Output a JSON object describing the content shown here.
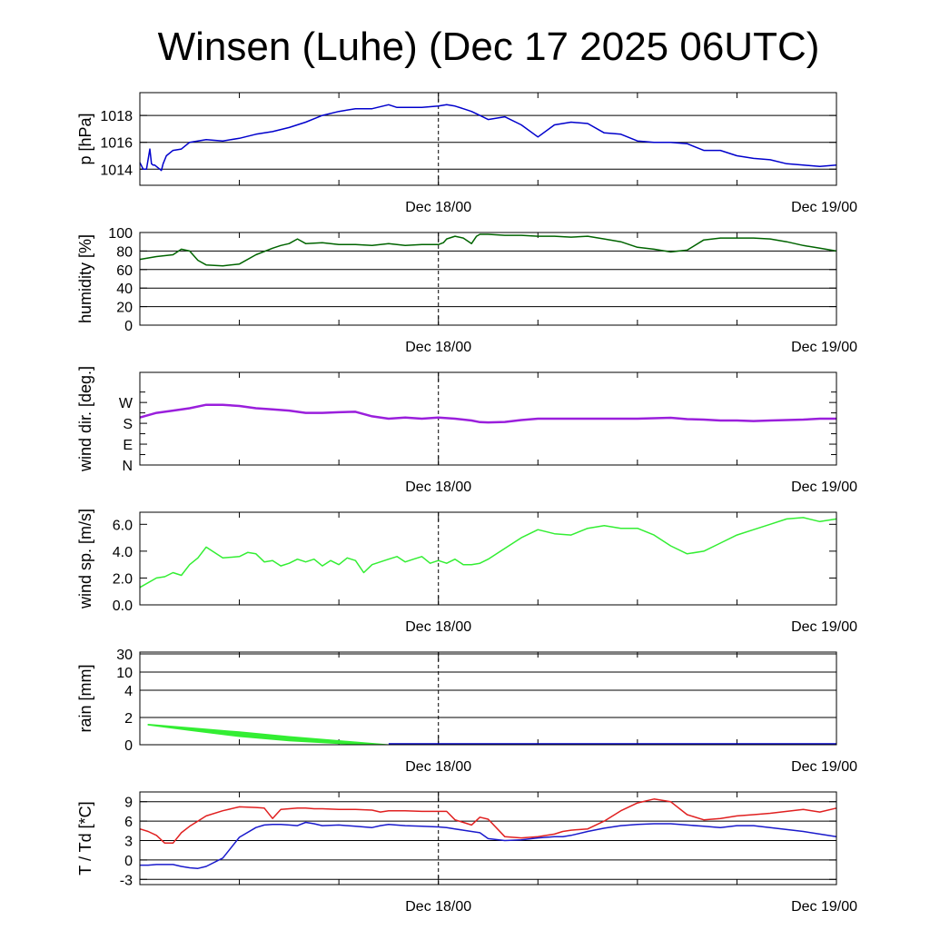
{
  "title": "Winsen (Luhe) (Dec 17 2025 06UTC)",
  "x_tick_labels": [
    "Dec 18/00",
    "Dec 19/00"
  ],
  "colors": {
    "pressure": "#0000cc",
    "humidity": "#006400",
    "wind_dir": "#9a1fdc",
    "wind_speed": "#33ee33",
    "rain": "#33ee33",
    "temperature": "#e02020",
    "dewpoint": "#1a1acc"
  },
  "chart_data": [
    {
      "type": "line",
      "name": "pressure",
      "ylabel": "p [hPa]",
      "xlim": [
        -18,
        24
      ],
      "ylim": [
        1012.8,
        1019.7
      ],
      "yticks": [
        1014,
        1016,
        1018
      ],
      "ytick_labels": [
        "1014",
        "1016",
        "1018"
      ],
      "grid": true,
      "x": [
        -18,
        -17.8,
        -17.6,
        -17.4,
        -17.3,
        -17.2,
        -17.1,
        -16.9,
        -16.7,
        -16.6,
        -16.4,
        -16,
        -15.5,
        -15,
        -14.5,
        -14,
        -13,
        -12,
        -11,
        -10,
        -9,
        -8,
        -7,
        -6,
        -5,
        -4,
        -3,
        -2.5,
        -2,
        -1,
        0,
        0.5,
        1,
        1.5,
        2,
        2.5,
        3,
        4,
        5,
        6,
        7,
        8,
        9,
        10,
        11,
        12,
        13,
        14,
        15,
        16,
        17,
        18,
        19,
        20,
        21,
        22,
        23,
        24
      ],
      "series": [
        {
          "name": "p",
          "color_key": "pressure",
          "values": [
            1014.5,
            1014.0,
            1014.0,
            1015.5,
            1014.4,
            1014.3,
            1014.3,
            1014.1,
            1013.9,
            1014.4,
            1015.0,
            1015.4,
            1015.5,
            1016.0,
            1016.1,
            1016.2,
            1016.1,
            1016.3,
            1016.6,
            1016.8,
            1017.1,
            1017.5,
            1018.0,
            1018.3,
            1018.5,
            1018.5,
            1018.8,
            1018.6,
            1018.6,
            1018.6,
            1018.7,
            1018.8,
            1018.7,
            1018.5,
            1018.3,
            1018.0,
            1017.7,
            1017.9,
            1017.3,
            1016.4,
            1017.3,
            1017.5,
            1017.4,
            1016.7,
            1016.6,
            1016.1,
            1016.0,
            1016.0,
            1015.9,
            1015.4,
            1015.4,
            1015.0,
            1014.8,
            1014.7,
            1014.4,
            1014.3,
            1014.2,
            1014.3
          ]
        }
      ]
    },
    {
      "type": "line",
      "name": "humidity",
      "ylabel": "humidity [%]",
      "xlim": [
        -18,
        24
      ],
      "ylim": [
        0,
        100
      ],
      "yticks": [
        0,
        20,
        40,
        60,
        80,
        100
      ],
      "ytick_labels": [
        "0",
        "20",
        "40",
        "60",
        "80",
        "100"
      ],
      "grid": true,
      "x": [
        -18,
        -17,
        -16,
        -15.5,
        -15,
        -14.5,
        -14,
        -13,
        -12,
        -11,
        -10,
        -9.5,
        -9,
        -8.5,
        -8,
        -7,
        -6,
        -5,
        -4,
        -3,
        -2,
        -1,
        0,
        0.3,
        0.5,
        1,
        1.5,
        2,
        2.3,
        2.5,
        3,
        4,
        5,
        6,
        7,
        8,
        9,
        10,
        11,
        12,
        13,
        14,
        15,
        16,
        17,
        18,
        19,
        20,
        21,
        22,
        23,
        24
      ],
      "series": [
        {
          "name": "rh",
          "color_key": "humidity",
          "values": [
            71,
            74,
            76,
            82,
            80,
            70,
            65,
            64,
            66,
            76,
            83,
            86,
            88,
            93,
            88,
            89,
            87,
            87,
            86,
            88,
            86,
            87,
            87,
            89,
            93,
            96,
            94,
            88,
            96,
            98,
            98,
            97,
            97,
            96,
            96,
            95,
            96,
            93,
            90,
            84,
            82,
            79,
            81,
            92,
            94,
            94,
            94,
            93,
            90,
            86,
            83,
            80
          ]
        }
      ]
    },
    {
      "type": "line",
      "name": "wind_direction",
      "ylabel": "wind dir. [deg.]",
      "xlim": [
        -18,
        24
      ],
      "ylim": [
        0,
        400
      ],
      "yticks": [
        0,
        90,
        180,
        270
      ],
      "ytick_labels": [
        "N",
        "E",
        "S",
        "W"
      ],
      "grid": false,
      "x": [
        -18,
        -17,
        -16,
        -15,
        -14,
        -13,
        -12,
        -11,
        -10,
        -9,
        -8,
        -7,
        -6,
        -5,
        -4,
        -3,
        -2,
        -1,
        0,
        1,
        2,
        2.5,
        3,
        4,
        5,
        6,
        7,
        8,
        9,
        10,
        11,
        12,
        13,
        14,
        15,
        16,
        17,
        18,
        19,
        20,
        21,
        22,
        23,
        24
      ],
      "series": [
        {
          "name": "dd",
          "color_key": "wind_dir",
          "values": [
            205,
            225,
            235,
            245,
            260,
            260,
            255,
            245,
            240,
            235,
            225,
            225,
            228,
            230,
            210,
            200,
            205,
            200,
            205,
            200,
            192,
            185,
            184,
            186,
            194,
            200,
            200,
            200,
            200,
            200,
            200,
            200,
            202,
            204,
            198,
            196,
            192,
            192,
            190,
            192,
            194,
            196,
            200,
            200
          ]
        }
      ]
    },
    {
      "type": "line",
      "name": "wind_speed",
      "ylabel": "wind sp. [m/s]",
      "xlim": [
        -18,
        24
      ],
      "ylim": [
        0,
        6.9
      ],
      "yticks": [
        0,
        2,
        4,
        6
      ],
      "ytick_labels": [
        "0.0",
        "2.0",
        "4.0",
        "6.0"
      ],
      "grid": false,
      "x": [
        -18,
        -17,
        -16.5,
        -16,
        -15.5,
        -15,
        -14.5,
        -14,
        -13,
        -12,
        -11.5,
        -11,
        -10.5,
        -10,
        -9.5,
        -9,
        -8.5,
        -8,
        -7.5,
        -7,
        -6.5,
        -6,
        -5.5,
        -5,
        -4.5,
        -4,
        -3.5,
        -3,
        -2.5,
        -2,
        -1.5,
        -1,
        -0.5,
        0,
        0.5,
        1,
        1.5,
        2,
        2.5,
        3,
        4,
        5,
        6,
        7,
        8,
        9,
        10,
        11,
        12,
        13,
        14,
        15,
        16,
        17,
        18,
        19,
        20,
        21,
        22,
        23,
        24
      ],
      "series": [
        {
          "name": "ff",
          "color_key": "wind_speed",
          "values": [
            1.3,
            2.0,
            2.1,
            2.4,
            2.2,
            3.0,
            3.5,
            4.3,
            3.5,
            3.6,
            3.9,
            3.8,
            3.2,
            3.3,
            2.9,
            3.1,
            3.4,
            3.2,
            3.4,
            2.9,
            3.3,
            3.0,
            3.5,
            3.3,
            2.4,
            3.0,
            3.2,
            3.4,
            3.6,
            3.2,
            3.4,
            3.6,
            3.1,
            3.3,
            3.1,
            3.4,
            3.0,
            3.0,
            3.1,
            3.4,
            4.2,
            5.0,
            5.6,
            5.3,
            5.2,
            5.7,
            5.9,
            5.7,
            5.7,
            5.2,
            4.4,
            3.8,
            4.0,
            4.6,
            5.2,
            5.6,
            6.0,
            6.4,
            6.5,
            6.2,
            6.4
          ]
        }
      ]
    },
    {
      "type": "area",
      "name": "rain",
      "ylabel": "rain [mm]",
      "xlim": [
        -18,
        24
      ],
      "scale": "nonlinear",
      "yticks": [
        0,
        2,
        4,
        10,
        30
      ],
      "ytick_labels": [
        "0",
        "2",
        "4",
        "10",
        "30"
      ],
      "grid": true,
      "x": [
        -17.5,
        -15,
        -12,
        -9,
        -6,
        -3
      ],
      "series": [
        {
          "name": "rain_upper",
          "color_key": "rain",
          "values": [
            1.5,
            1.25,
            0.95,
            0.6,
            0.3,
            0.0
          ]
        },
        {
          "name": "rain_lower",
          "color_key": "rain",
          "values": [
            1.45,
            1.05,
            0.6,
            0.28,
            0.08,
            0.0
          ]
        }
      ]
    },
    {
      "type": "line",
      "name": "temperature",
      "ylabel": "T / Td [*C]",
      "xlim": [
        -18,
        24
      ],
      "ylim": [
        -3.8,
        10.5
      ],
      "yticks": [
        -3,
        0,
        3,
        6,
        9
      ],
      "ytick_labels": [
        "-3",
        "0",
        "3",
        "6",
        "9"
      ],
      "grid": true,
      "x": [
        -18,
        -17.5,
        -17,
        -16.5,
        -16,
        -15.5,
        -15,
        -14.5,
        -14,
        -13,
        -12,
        -11,
        -10.5,
        -10,
        -9.5,
        -9,
        -8.5,
        -8,
        -7.5,
        -7,
        -6,
        -5,
        -4,
        -3.5,
        -3,
        -2,
        -1,
        0,
        0.5,
        1,
        1.5,
        2,
        2.5,
        3,
        4,
        5,
        6,
        7,
        7.5,
        8,
        9,
        10,
        11,
        12,
        13,
        14,
        15,
        16,
        17,
        18,
        19,
        20,
        21,
        22,
        23,
        24
      ],
      "series": [
        {
          "name": "T",
          "color_key": "temperature",
          "values": [
            4.8,
            4.4,
            3.8,
            2.6,
            2.6,
            4.2,
            5.2,
            6.0,
            6.8,
            7.6,
            8.2,
            8.1,
            8.0,
            6.4,
            7.8,
            7.9,
            8.0,
            8.0,
            7.9,
            7.9,
            7.8,
            7.8,
            7.7,
            7.4,
            7.6,
            7.6,
            7.5,
            7.5,
            7.5,
            6.2,
            5.8,
            5.4,
            6.6,
            6.3,
            3.6,
            3.4,
            3.6,
            4.0,
            4.4,
            4.6,
            4.8,
            6.0,
            7.6,
            8.8,
            9.4,
            9.0,
            7.0,
            6.2,
            6.4,
            6.8,
            7.0,
            7.2,
            7.5,
            7.8,
            7.4,
            8.0
          ]
        },
        {
          "name": "Td",
          "color_key": "dewpoint",
          "values": [
            -0.8,
            -0.8,
            -0.7,
            -0.7,
            -0.7,
            -1.0,
            -1.2,
            -1.3,
            -1.0,
            0.3,
            3.5,
            5.0,
            5.4,
            5.5,
            5.5,
            5.4,
            5.3,
            5.8,
            5.6,
            5.3,
            5.4,
            5.2,
            5.0,
            5.3,
            5.5,
            5.3,
            5.2,
            5.1,
            5.0,
            4.8,
            4.6,
            4.4,
            4.2,
            3.3,
            3.0,
            3.1,
            3.4,
            3.6,
            3.6,
            3.8,
            4.4,
            4.9,
            5.3,
            5.5,
            5.6,
            5.6,
            5.4,
            5.2,
            5.0,
            5.3,
            5.3,
            5.0,
            4.7,
            4.4,
            4.0,
            3.6
          ]
        }
      ]
    }
  ]
}
